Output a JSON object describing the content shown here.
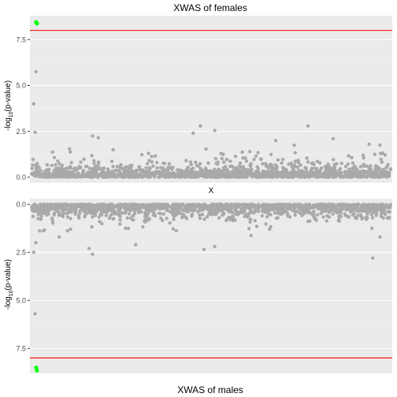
{
  "chart_data": [
    {
      "type": "scatter",
      "title": "XWAS of females",
      "xlabel": "X",
      "ylabel": "-log10(p-value)",
      "ylabel_main": "-log",
      "ylabel_sub": "10",
      "ylabel_rest": "(p-value)",
      "yticks": [
        0.0,
        2.5,
        5.0,
        7.5
      ],
      "ytick_labels": [
        "0.0",
        "2.5",
        "5.0",
        "7.5"
      ],
      "ylim": [
        -0.3,
        8.8
      ],
      "y_reversed": false,
      "threshold": 8.0,
      "threshold_color": "#ff0000",
      "point_color": "#a9a9a9",
      "highlight_color": "#00ff00",
      "highlight_points": [
        {
          "x": 0.013,
          "y": 8.45
        },
        {
          "x": 0.015,
          "y": 8.38
        }
      ],
      "notable_points": [
        {
          "x": 0.012,
          "y": 5.75
        },
        {
          "x": 0.006,
          "y": 4.0
        },
        {
          "x": 0.01,
          "y": 2.45
        },
        {
          "x": 0.17,
          "y": 2.25
        },
        {
          "x": 0.186,
          "y": 2.15
        },
        {
          "x": 0.45,
          "y": 2.4
        },
        {
          "x": 0.47,
          "y": 2.8
        },
        {
          "x": 0.51,
          "y": 2.55
        },
        {
          "x": 0.68,
          "y": 2.0
        },
        {
          "x": 0.77,
          "y": 2.8
        },
        {
          "x": 0.84,
          "y": 2.1
        },
        {
          "x": 0.94,
          "y": 1.8
        },
        {
          "x": 0.97,
          "y": 1.75
        }
      ],
      "background_points_note_count": 1500
    },
    {
      "type": "scatter",
      "title": "XWAS of males",
      "xlabel": "",
      "ylabel": "-log10(p-value)",
      "ylabel_main": "-log",
      "ylabel_sub": "10",
      "ylabel_rest": "(p-value)",
      "yticks": [
        0.0,
        2.5,
        5.0,
        7.5
      ],
      "ytick_labels": [
        "0.0",
        "2.5",
        "5.0",
        "7.5"
      ],
      "ylim": [
        -0.3,
        8.8
      ],
      "y_reversed": true,
      "threshold": 8.0,
      "threshold_color": "#ff0000",
      "point_color": "#a9a9a9",
      "highlight_color": "#00ff00",
      "highlight_points": [
        {
          "x": 0.013,
          "y": 8.5
        },
        {
          "x": 0.015,
          "y": 8.65
        }
      ],
      "notable_points": [
        {
          "x": 0.01,
          "y": 5.7
        },
        {
          "x": 0.006,
          "y": 2.5
        },
        {
          "x": 0.012,
          "y": 2.0
        },
        {
          "x": 0.16,
          "y": 2.3
        },
        {
          "x": 0.17,
          "y": 2.6
        },
        {
          "x": 0.29,
          "y": 2.1
        },
        {
          "x": 0.48,
          "y": 2.35
        },
        {
          "x": 0.51,
          "y": 2.2
        },
        {
          "x": 0.95,
          "y": 2.8
        },
        {
          "x": 0.97,
          "y": 1.7
        }
      ]
    }
  ]
}
